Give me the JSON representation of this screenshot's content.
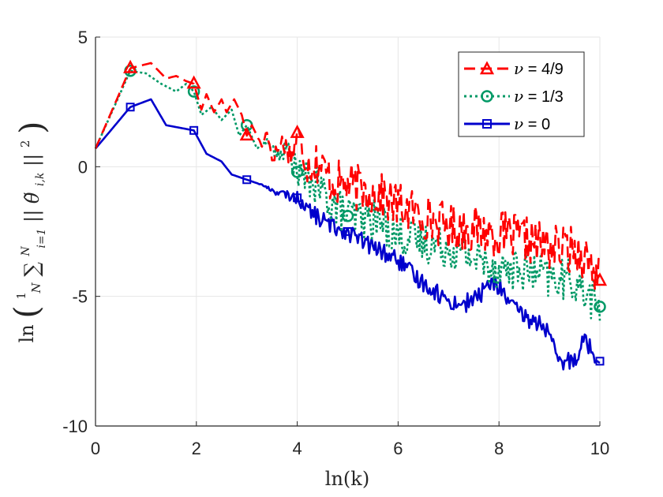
{
  "chart_data": {
    "type": "line",
    "title": "",
    "xlabel": "ln(k)",
    "ylabel": "ln( (1/N) ∑_{i=1}^{N} ||θ̃_{i,k}||² )",
    "ylabel_parts": {
      "ln": "ln",
      "lparen": "(",
      "frac_num": "1",
      "frac_den": "N",
      "sum": "∑",
      "sum_sup": "N",
      "sum_sub": "i=1",
      "norm_open": "||",
      "theta": "θ̃",
      "theta_sub": "i,k",
      "norm_close": "||",
      "power": "2",
      "rparen": ")"
    },
    "xlim": [
      0,
      10
    ],
    "ylim": [
      -10,
      5
    ],
    "xticks": [
      0,
      2,
      4,
      6,
      8,
      10
    ],
    "yticks": [
      5,
      0,
      -5,
      -10
    ],
    "xtick_labels": [
      "0",
      "2",
      "4",
      "6",
      "8",
      "10"
    ],
    "ytick_labels": [
      "5",
      "0",
      "-5",
      "-10"
    ],
    "grid": true,
    "legend_position": "top-right",
    "series": [
      {
        "name": "ν = 4/9",
        "legend_prefix": "ν",
        "legend_value": " = 4/9",
        "color": "#ff0000",
        "style": "dashed",
        "marker": "triangle",
        "x": [
          0,
          0.69,
          1.1,
          1.4,
          1.6,
          1.8,
          1.95,
          2.1,
          2.2,
          2.35,
          2.5,
          2.6,
          2.75,
          2.9,
          3.0,
          3.1,
          3.3,
          3.4,
          3.5,
          3.7,
          3.9,
          4.0,
          4.2,
          4.4,
          4.7,
          5.0,
          5.5,
          6.0,
          6.5,
          7.0,
          7.5,
          8.0,
          8.5,
          9.0,
          9.5,
          9.8,
          10.0
        ],
        "y": [
          0.7,
          3.8,
          4.0,
          3.4,
          3.5,
          3.3,
          3.2,
          2.2,
          2.8,
          2.1,
          2.6,
          2.1,
          2.6,
          2.0,
          1.2,
          1.6,
          0.8,
          1.4,
          0.3,
          1.0,
          0.4,
          1.3,
          0.1,
          0.2,
          -0.6,
          -0.7,
          -1.0,
          -1.5,
          -1.9,
          -2.3,
          -2.4,
          -2.6,
          -2.8,
          -3.1,
          -3.2,
          -3.6,
          -4.4
        ],
        "markers_x": [
          0.69,
          1.95,
          3.0,
          4.0,
          10.0
        ],
        "markers_y": [
          3.8,
          3.2,
          1.2,
          1.3,
          -4.4
        ],
        "noise": 0.9
      },
      {
        "name": "ν = 1/3",
        "legend_prefix": "ν",
        "legend_value": " = 1/3",
        "color": "#009966",
        "style": "dotted",
        "marker": "circle",
        "x": [
          0,
          0.69,
          1.0,
          1.3,
          1.6,
          1.8,
          1.95,
          2.1,
          2.3,
          2.5,
          2.7,
          2.85,
          3.0,
          3.2,
          3.4,
          3.6,
          3.8,
          4.0,
          4.3,
          4.6,
          5.0,
          5.5,
          6.0,
          6.5,
          7.0,
          7.5,
          8.0,
          8.5,
          9.0,
          9.5,
          10.0
        ],
        "y": [
          0.7,
          3.7,
          3.6,
          3.2,
          2.9,
          3.2,
          2.9,
          2.0,
          2.3,
          1.8,
          2.2,
          1.2,
          1.6,
          0.7,
          1.0,
          0.4,
          0.7,
          -0.2,
          -0.6,
          -1.2,
          -1.9,
          -2.0,
          -2.6,
          -2.9,
          -3.1,
          -3.5,
          -3.9,
          -4.0,
          -4.3,
          -4.4,
          -5.4
        ],
        "markers_x": [
          0.69,
          1.95,
          3.0,
          4.0,
          5.0,
          10.0
        ],
        "markers_y": [
          3.7,
          2.9,
          1.6,
          -0.2,
          -1.9,
          -5.4
        ],
        "noise": 0.8
      },
      {
        "name": "ν = 0",
        "legend_prefix": "ν",
        "legend_value": " = 0",
        "color": "#0000cc",
        "style": "solid",
        "marker": "square",
        "x": [
          0,
          0.69,
          1.1,
          1.4,
          1.95,
          2.2,
          2.5,
          2.7,
          3.0,
          3.3,
          3.6,
          4.0,
          4.3,
          4.6,
          5.0,
          5.3,
          5.6,
          6.0,
          6.3,
          6.6,
          7.0,
          7.3,
          7.6,
          7.8,
          8.0,
          8.3,
          8.6,
          8.9,
          9.2,
          9.5,
          9.7,
          9.9,
          10.0
        ],
        "y": [
          0.7,
          2.3,
          2.6,
          1.6,
          1.4,
          0.5,
          0.2,
          -0.3,
          -0.5,
          -0.7,
          -1.0,
          -1.2,
          -1.8,
          -2.2,
          -2.5,
          -2.9,
          -3.2,
          -3.6,
          -4.2,
          -4.6,
          -5.2,
          -5.3,
          -5.0,
          -4.5,
          -4.6,
          -5.5,
          -5.9,
          -6.1,
          -7.6,
          -7.4,
          -6.6,
          -7.3,
          -7.5
        ],
        "markers_x": [
          0.69,
          1.95,
          3.0,
          4.0,
          5.0,
          10.0
        ],
        "markers_y": [
          2.3,
          1.4,
          -0.5,
          -1.2,
          -2.5,
          -7.5
        ],
        "noise": 0.35
      }
    ]
  }
}
